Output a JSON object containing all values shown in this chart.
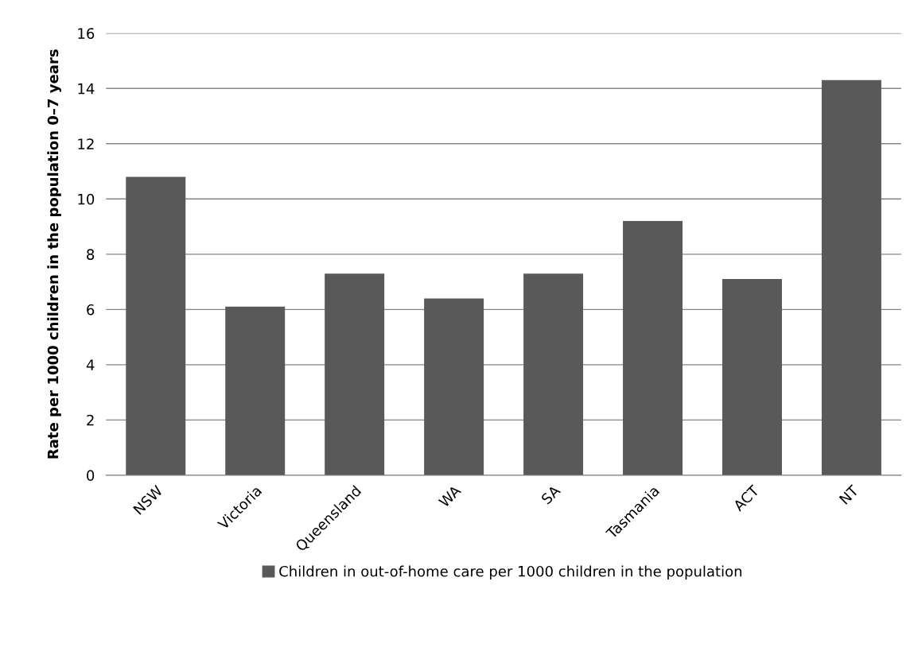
{
  "chart_data": {
    "type": "bar",
    "ylabel": "Rate per 1000 children in the population 0–7 years",
    "categories": [
      "NSW",
      "Victoria",
      "Queensland",
      "WA",
      "SA",
      "Tasmania",
      "ACT",
      "NT"
    ],
    "series": [
      {
        "name": "Children in out-of-home care per 1000 children in the population",
        "color": "#595959",
        "values": [
          10.8,
          6.1,
          7.3,
          6.4,
          7.3,
          9.2,
          7.1,
          14.3
        ]
      }
    ],
    "ylim": [
      0,
      16
    ],
    "yticks": [
      0,
      2,
      4,
      6,
      8,
      10,
      12,
      14,
      16
    ],
    "grid": "y",
    "legend": "bottom"
  }
}
